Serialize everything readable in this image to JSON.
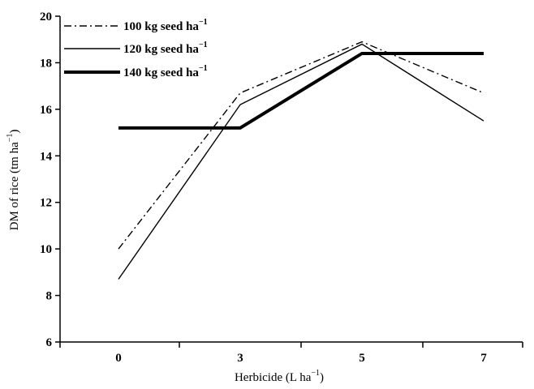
{
  "chart_data": {
    "type": "line",
    "title": "",
    "xlabel": "Herbicide (L ha",
    "xlabel_sup": "−1",
    "xlabel_close": ")",
    "ylabel": "DM of rice (tm ha",
    "ylabel_sup": "−1",
    "ylabel_close": ")",
    "categories": [
      "0",
      "3",
      "5",
      "7"
    ],
    "y_ticks": [
      6,
      8,
      10,
      12,
      14,
      16,
      18,
      20
    ],
    "ylim": [
      6,
      20
    ],
    "grid": false,
    "legend_position": "top-left",
    "series": [
      {
        "name": "100 kg seed ha",
        "name_sup": "−1",
        "style": "dash-dot",
        "values": [
          10.0,
          16.7,
          18.9,
          16.7
        ]
      },
      {
        "name": "120 kg seed ha",
        "name_sup": "−1",
        "style": "thin",
        "values": [
          8.7,
          16.2,
          18.8,
          15.5
        ]
      },
      {
        "name": "140 kg seed ha",
        "name_sup": "−1",
        "style": "thick",
        "values": [
          15.2,
          15.2,
          18.4,
          18.4
        ]
      }
    ]
  }
}
